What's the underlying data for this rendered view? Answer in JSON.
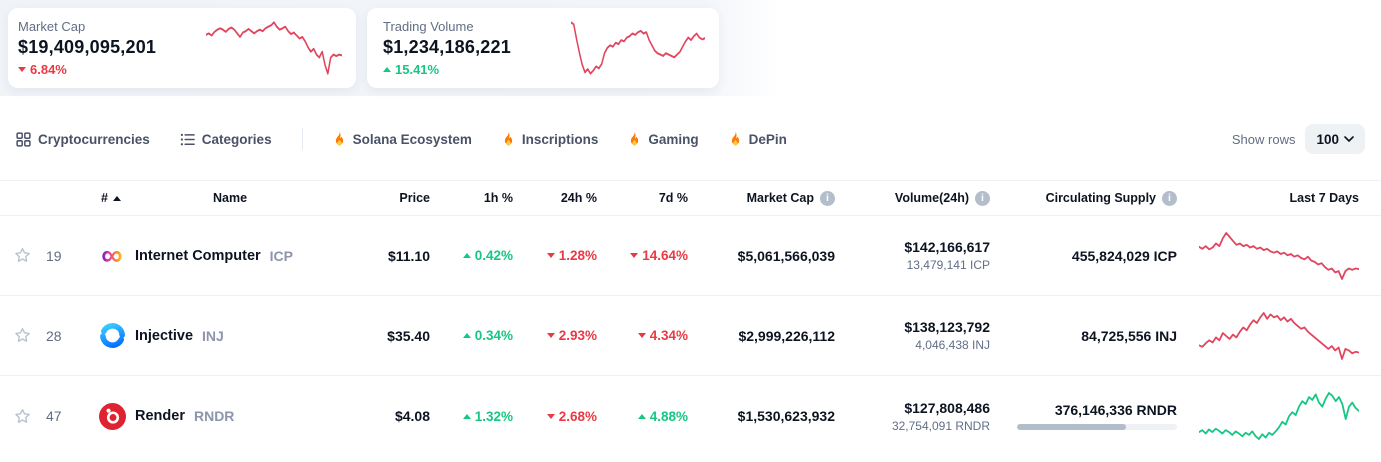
{
  "stats": {
    "cards": [
      {
        "label": "Market Cap",
        "value": "$19,409,095,201",
        "change": "6.84%",
        "direction": "down",
        "spark_color": "#e0465f",
        "sparkline": [
          62,
          64,
          61,
          66,
          69,
          71,
          69,
          66,
          70,
          72,
          69,
          64,
          59,
          65,
          67,
          70,
          67,
          64,
          67,
          69,
          67,
          71,
          73,
          75,
          79,
          73,
          69,
          71,
          73,
          67,
          63,
          65,
          61,
          57,
          59,
          53,
          45,
          39,
          43,
          35,
          31,
          39,
          21,
          9,
          31,
          35,
          33,
          35,
          34
        ]
      },
      {
        "label": "Trading Volume",
        "value": "$1,234,186,221",
        "change": "15.41%",
        "direction": "up",
        "spark_color": "#e0465f",
        "sparkline": [
          88,
          85,
          62,
          42,
          24,
          12,
          17,
          10,
          15,
          21,
          18,
          25,
          41,
          49,
          53,
          51,
          57,
          55,
          61,
          59,
          65,
          67,
          71,
          69,
          73,
          75,
          71,
          73,
          61,
          53,
          45,
          41,
          39,
          37,
          41,
          39,
          37,
          35,
          39,
          43,
          51,
          59,
          65,
          61,
          67,
          71,
          65,
          62,
          64
        ]
      }
    ]
  },
  "toolbar": {
    "items": [
      {
        "label": "Cryptocurrencies"
      },
      {
        "label": "Categories"
      },
      {
        "label": "Solana Ecosystem"
      },
      {
        "label": "Inscriptions"
      },
      {
        "label": "Gaming"
      },
      {
        "label": "DePin"
      }
    ],
    "show_rows_label": "Show rows",
    "rows_per_page": "100"
  },
  "table": {
    "headers": {
      "rank": "#",
      "name": "Name",
      "price": "Price",
      "h1": "1h %",
      "h24": "24h %",
      "d7": "7d %",
      "market_cap": "Market Cap",
      "volume": "Volume(24h)",
      "supply": "Circulating Supply",
      "last7": "Last 7 Days",
      "info_glyph": "i"
    },
    "rows": [
      {
        "rank": "19",
        "name": "Internet Computer",
        "symbol": "ICP",
        "price": "$11.10",
        "h1": {
          "value": "0.42%",
          "dir": "up"
        },
        "h24": {
          "value": "1.28%",
          "dir": "down"
        },
        "d7": {
          "value": "14.64%",
          "dir": "down"
        },
        "market_cap": "$5,061,566,039",
        "volume": "$142,166,617",
        "volume_sub": "13,479,141 ICP",
        "supply": "455,824,029 ICP",
        "spark_color": "#e0465f",
        "sparkline": [
          60,
          57,
          61,
          56,
          59,
          65,
          61,
          73,
          81,
          75,
          69,
          63,
          65,
          61,
          63,
          59,
          61,
          57,
          59,
          55,
          57,
          53,
          51,
          53,
          49,
          51,
          47,
          49,
          45,
          47,
          43,
          41,
          45,
          39,
          37,
          33,
          35,
          29,
          25,
          27,
          21,
          23,
          11,
          23,
          27,
          25,
          27,
          26
        ]
      },
      {
        "rank": "28",
        "name": "Injective",
        "symbol": "INJ",
        "price": "$35.40",
        "h1": {
          "value": "0.34%",
          "dir": "up"
        },
        "h24": {
          "value": "2.93%",
          "dir": "down"
        },
        "d7": {
          "value": "4.34%",
          "dir": "down"
        },
        "market_cap": "$2,999,226,112",
        "volume": "$138,123,792",
        "volume_sub": "4,046,438 INJ",
        "supply": "84,725,556 INJ",
        "spark_color": "#e0465f",
        "sparkline": [
          34,
          32,
          37,
          41,
          38,
          45,
          41,
          51,
          47,
          43,
          49,
          45,
          53,
          59,
          55,
          63,
          69,
          65,
          73,
          79,
          71,
          77,
          73,
          75,
          69,
          73,
          67,
          71,
          65,
          61,
          57,
          59,
          53,
          49,
          45,
          41,
          37,
          33,
          29,
          33,
          27,
          31,
          15,
          29,
          27,
          23,
          25,
          24
        ]
      },
      {
        "rank": "47",
        "name": "Render",
        "symbol": "RNDR",
        "price": "$4.08",
        "h1": {
          "value": "1.32%",
          "dir": "up"
        },
        "h24": {
          "value": "2.68%",
          "dir": "down"
        },
        "d7": {
          "value": "4.88%",
          "dir": "up"
        },
        "market_cap": "$1,530,623,932",
        "volume": "$127,808,486",
        "volume_sub": "32,754,091 RNDR",
        "supply": "376,146,336 RNDR",
        "supply_progress": 0.68,
        "spark_color": "#16c784",
        "sparkline": [
          30,
          33,
          28,
          34,
          30,
          35,
          32,
          28,
          33,
          30,
          26,
          31,
          28,
          24,
          29,
          26,
          31,
          24,
          20,
          27,
          22,
          29,
          26,
          31,
          37,
          45,
          41,
          53,
          59,
          55,
          67,
          75,
          71,
          81,
          77,
          85,
          73,
          67,
          79,
          87,
          83,
          75,
          81,
          71,
          49,
          67,
          73,
          65,
          61
        ]
      }
    ]
  },
  "colors": {
    "up": "#16c784",
    "down": "#ea3943"
  }
}
